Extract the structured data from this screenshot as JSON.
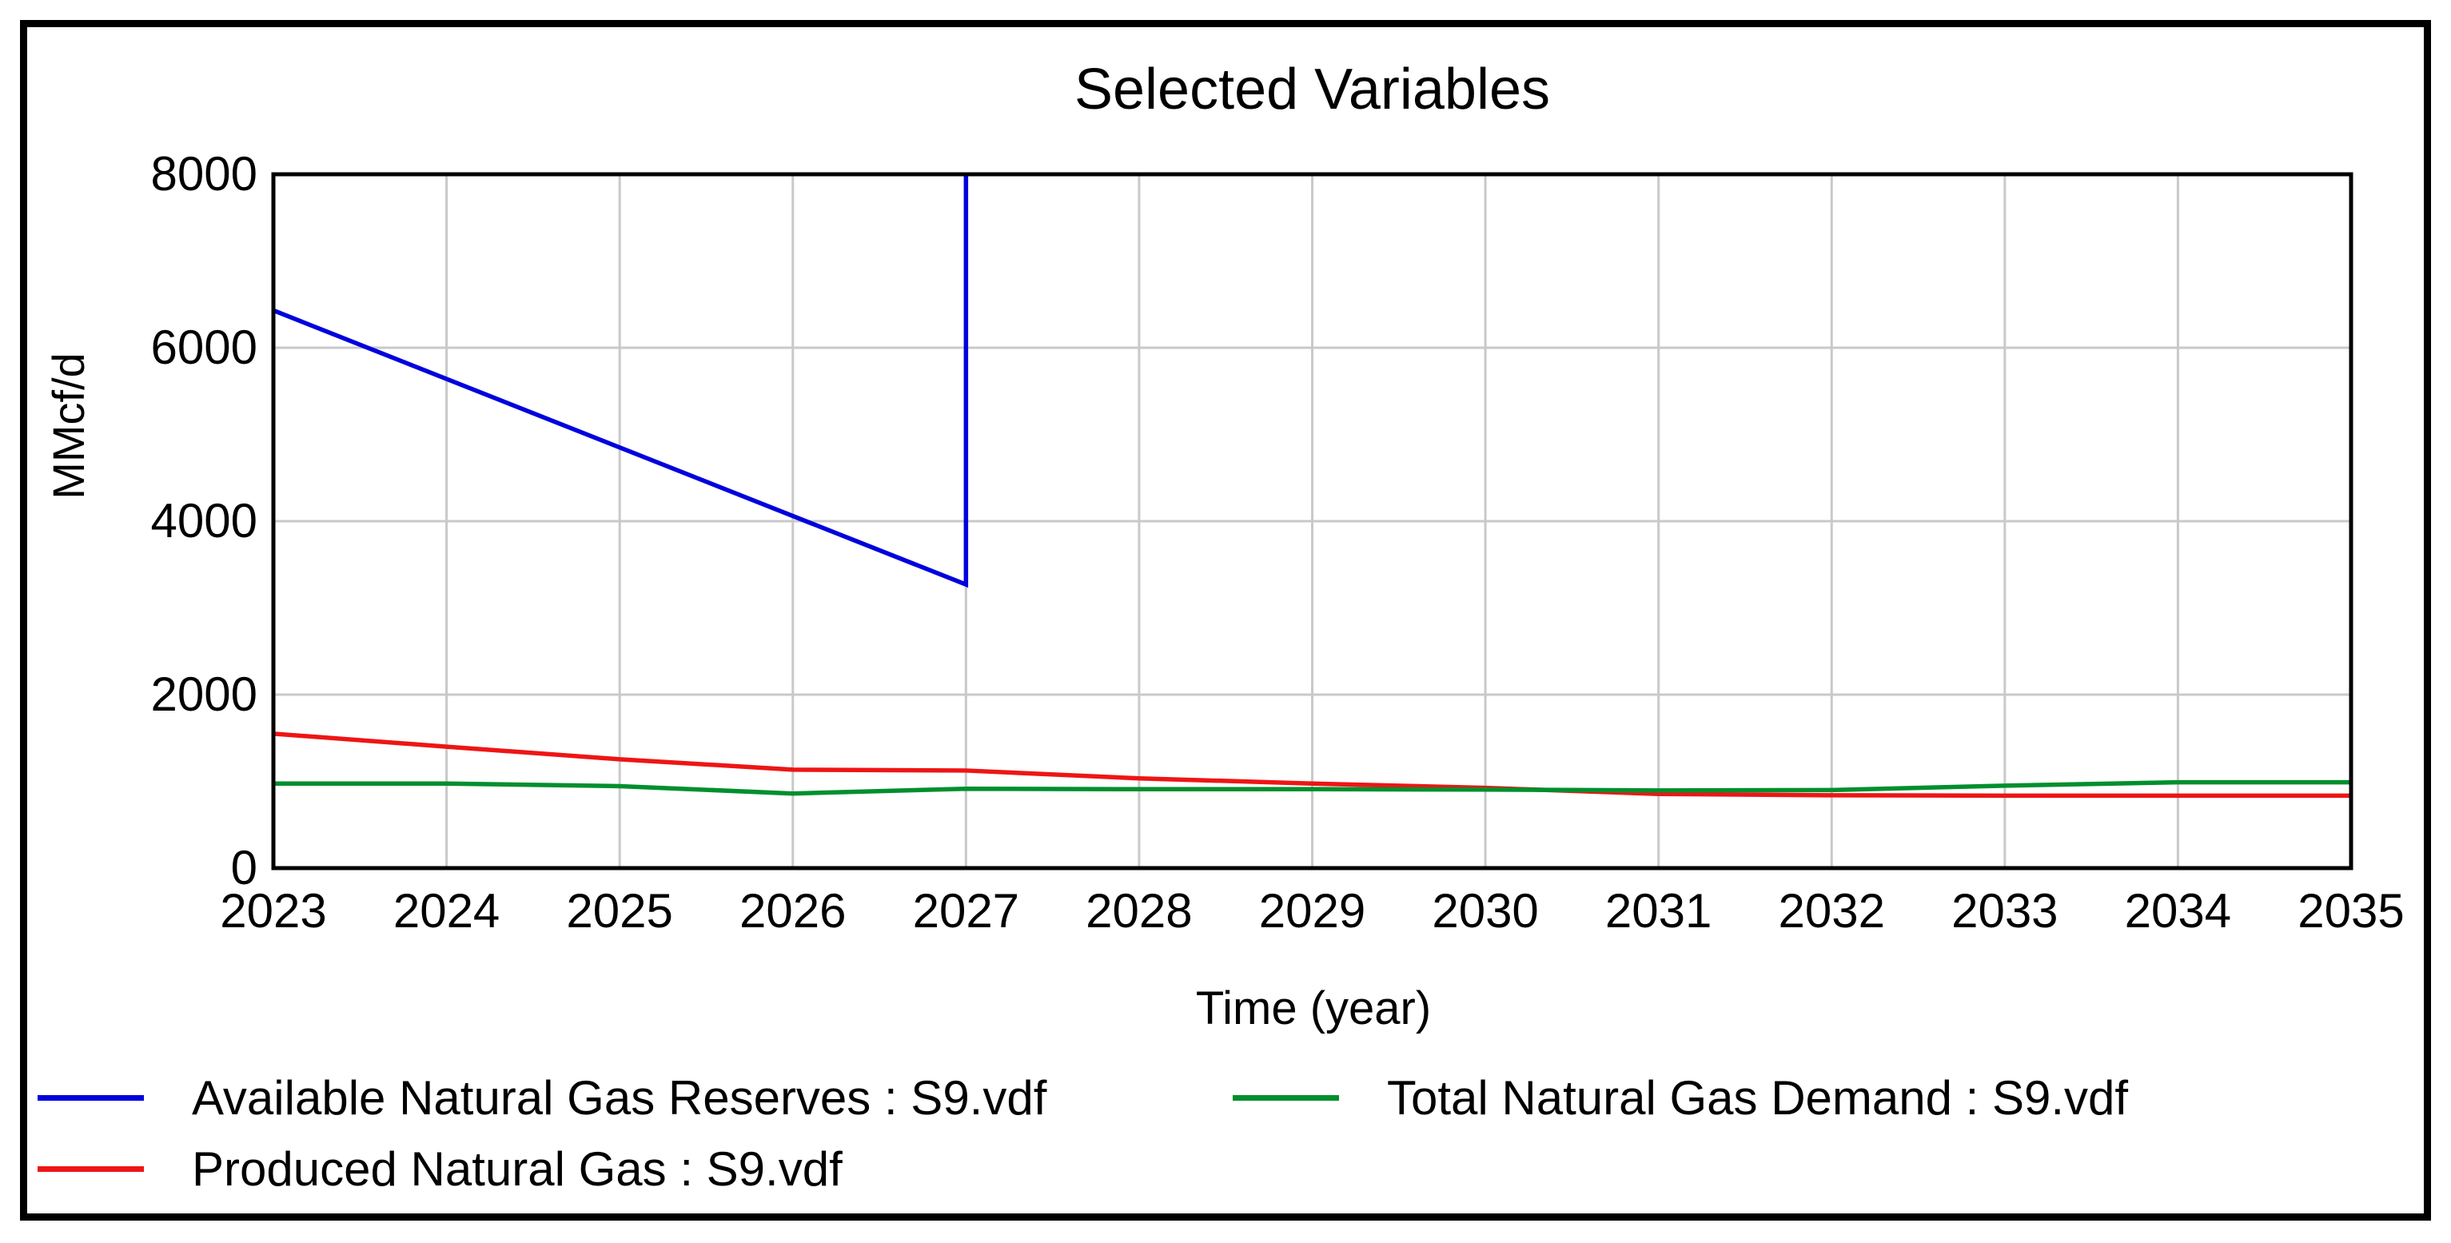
{
  "chart_data": {
    "type": "line",
    "title": "Selected Variables",
    "xlabel": "Time (year)",
    "ylabel": "MMcf/d",
    "xlim": [
      2023,
      2035
    ],
    "ylim": [
      0,
      8000
    ],
    "x_ticks": [
      2023,
      2024,
      2025,
      2026,
      2027,
      2028,
      2029,
      2030,
      2031,
      2032,
      2033,
      2034,
      2035
    ],
    "y_ticks": [
      0,
      2000,
      4000,
      6000,
      8000
    ],
    "grid": true,
    "grid_color": "#c9c9c9",
    "axis_color": "#000000",
    "legend_position": "bottom-left, two columns",
    "x": [
      2023,
      2024,
      2025,
      2026,
      2027,
      2028,
      2029,
      2030,
      2031,
      2032,
      2033,
      2034,
      2035
    ],
    "series": [
      {
        "name": "Available Natural Gas Reserves : S9.vdf",
        "color": "#0000dd",
        "points": [
          [
            2023,
            6430
          ],
          [
            2027,
            3270
          ],
          [
            2027,
            8000
          ]
        ],
        "note": "declines linearly 2023-2027, then jumps above y-axis max at 2027 (clipped at top of plot afterwards)"
      },
      {
        "name": "Produced Natural Gas : S9.vdf",
        "color": "#ee1515",
        "values": [
          1550,
          1400,
          1255,
          1135,
          1125,
          1035,
          975,
          925,
          855,
          840,
          835,
          835,
          835
        ]
      },
      {
        "name": "Total Natural Gas Demand : S9.vdf",
        "color": "#008f2d",
        "values": [
          975,
          975,
          945,
          860,
          915,
          910,
          910,
          905,
          895,
          900,
          950,
          990,
          990
        ]
      }
    ]
  },
  "legend": {
    "items": [
      {
        "label": "Available Natural Gas Reserves : S9.vdf",
        "color": "#0000dd"
      },
      {
        "label": "Produced Natural Gas : S9.vdf",
        "color": "#ee1515"
      },
      {
        "label": "Total Natural Gas Demand : S9.vdf",
        "color": "#008f2d"
      }
    ]
  }
}
